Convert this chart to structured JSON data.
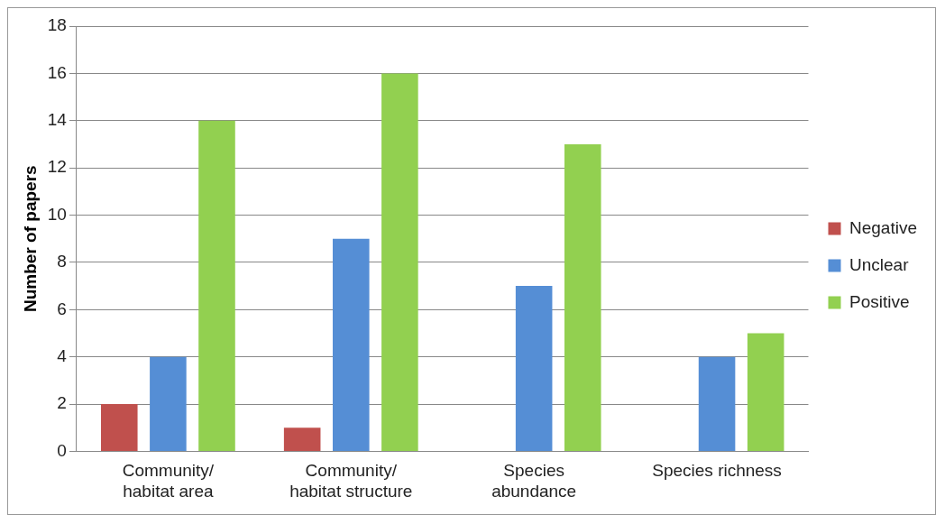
{
  "chart_data": {
    "type": "bar",
    "ylabel": "Number of papers",
    "categories": [
      "Community/\nhabitat area",
      "Community/\nhabitat structure",
      "Species\nabundance",
      "Species richness"
    ],
    "series": [
      {
        "name": "Negative",
        "color": "#c0504d",
        "values": [
          2,
          1,
          0,
          0
        ]
      },
      {
        "name": "Unclear",
        "color": "#558ed5",
        "values": [
          4,
          9,
          7,
          4
        ]
      },
      {
        "name": "Positive",
        "color": "#92d050",
        "values": [
          14,
          16,
          13,
          5
        ]
      }
    ],
    "ylim": [
      0,
      18
    ],
    "yticks": [
      0,
      2,
      4,
      6,
      8,
      10,
      12,
      14,
      16,
      18
    ],
    "grid": "y",
    "legend": "right"
  }
}
